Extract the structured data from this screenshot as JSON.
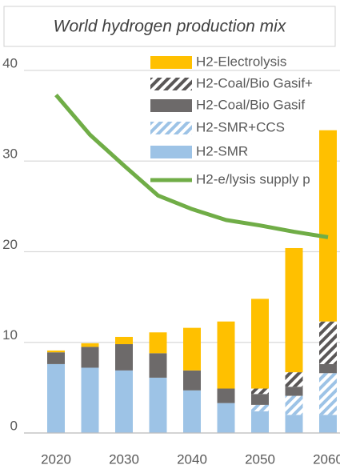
{
  "chart_data": {
    "type": "bar",
    "title": "World hydrogen production mix",
    "categories": [
      "2020",
      null,
      "2030",
      null,
      "2040",
      null,
      "2050",
      null,
      "2060"
    ],
    "ylim": [
      0,
      40
    ],
    "yticks": [
      0,
      10,
      20,
      30,
      40
    ],
    "grid": true,
    "stacked": true,
    "series": [
      {
        "name": "H2-SMR",
        "color": "#9dc3e6",
        "hatch": false,
        "values": [
          7.6,
          7.2,
          6.9,
          6.1,
          4.7,
          3.3,
          2.4,
          2.0,
          2.0
        ]
      },
      {
        "name": "H2-SMR+CCS",
        "color": "#9dc3e6",
        "hatch": true,
        "values": [
          0,
          0,
          0,
          0,
          0,
          0,
          0.7,
          2.1,
          4.6
        ]
      },
      {
        "name": "H2-Coal/Bio Gasif",
        "color": "#6d6a6a",
        "hatch": false,
        "values": [
          1.3,
          2.3,
          2.9,
          2.7,
          2.2,
          1.6,
          1.2,
          1.0,
          1.0
        ]
      },
      {
        "name": "H2-Coal/Bio Gasif+",
        "color": "#5a5757",
        "hatch": true,
        "values": [
          0,
          0,
          0,
          0,
          0,
          0,
          0.6,
          1.6,
          4.7
        ]
      },
      {
        "name": "H2-Electrolysis",
        "color": "#ffc000",
        "hatch": false,
        "values": [
          0.2,
          0.4,
          0.8,
          2.3,
          4.7,
          7.4,
          9.9,
          13.7,
          21.1
        ]
      },
      {
        "name": "H2-e/lysis supply p",
        "type": "line",
        "color": "#70ad47",
        "values": [
          37.3,
          32.9,
          29.5,
          26.2,
          24.7,
          23.5,
          22.9,
          22.2,
          21.6
        ]
      }
    ]
  }
}
